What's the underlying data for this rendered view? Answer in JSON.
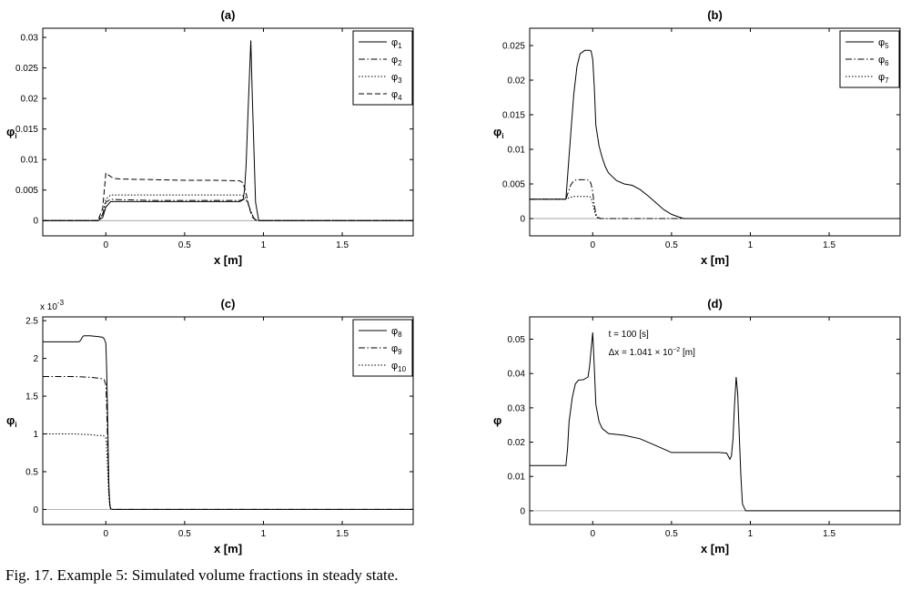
{
  "caption": "Fig. 17. Example 5: Simulated volume fractions in steady state.",
  "chart_data": [
    {
      "id": "a",
      "type": "line",
      "title": "(a)",
      "xlabel": "x [m]",
      "ylabel": "φi",
      "ylabel_base": "φ",
      "ylabel_sub": "i",
      "xlim": [
        -0.4,
        1.95
      ],
      "ylim": [
        -0.0025,
        0.0315
      ],
      "xticks": [
        0,
        0.5,
        1,
        1.5
      ],
      "xtick_labels": [
        "0",
        "0.5",
        "1",
        "1.5"
      ],
      "yticks": [
        0,
        0.005,
        0.01,
        0.015,
        0.02,
        0.025,
        0.03
      ],
      "ytick_labels": [
        "0",
        "0.005",
        "0.01",
        "0.015",
        "0.02",
        "0.025",
        "0.03"
      ],
      "exponent_label": "",
      "legend": "top-right",
      "series": [
        {
          "name": "φ1",
          "base": "φ",
          "sub": "1",
          "dash": "solid",
          "x": [
            -0.4,
            -0.05,
            -0.02,
            0.0,
            0.03,
            0.1,
            0.3,
            0.5,
            0.7,
            0.85,
            0.87,
            0.88,
            0.89,
            0.9,
            0.91,
            0.92,
            0.93,
            0.95,
            0.97,
            1.95
          ],
          "y": [
            0,
            0,
            0.0005,
            0.0022,
            0.0031,
            0.0031,
            0.0031,
            0.0031,
            0.0031,
            0.0031,
            0.0034,
            0.005,
            0.009,
            0.016,
            0.023,
            0.0295,
            0.02,
            0.003,
            0,
            0
          ]
        },
        {
          "name": "φ2",
          "base": "φ",
          "sub": "2",
          "dash": "dashdot",
          "x": [
            -0.4,
            -0.05,
            -0.02,
            0.0,
            0.03,
            0.1,
            0.3,
            0.5,
            0.7,
            0.85,
            0.88,
            0.9,
            0.92,
            0.94,
            0.96,
            1.95
          ],
          "y": [
            0,
            0,
            0.001,
            0.003,
            0.0035,
            0.0034,
            0.0033,
            0.0033,
            0.0033,
            0.0033,
            0.0035,
            0.003,
            0.0015,
            0.0003,
            0,
            0
          ]
        },
        {
          "name": "φ3",
          "base": "φ",
          "sub": "3",
          "dash": "dotted",
          "x": [
            -0.4,
            -0.05,
            -0.02,
            0.0,
            0.03,
            0.1,
            0.5,
            0.85,
            0.88,
            0.9,
            0.92,
            0.94,
            0.96,
            1.95
          ],
          "y": [
            0,
            0,
            0.001,
            0.0035,
            0.0042,
            0.0042,
            0.0042,
            0.0042,
            0.004,
            0.003,
            0.0015,
            0.0004,
            0,
            0
          ]
        },
        {
          "name": "φ4",
          "base": "φ",
          "sub": "4",
          "dash": "dashed",
          "x": [
            -0.4,
            -0.05,
            -0.02,
            0.0,
            0.02,
            0.05,
            0.1,
            0.3,
            0.5,
            0.7,
            0.85,
            0.87,
            0.89,
            0.91,
            0.93,
            0.95,
            0.97,
            1.95
          ],
          "y": [
            0,
            0,
            0.002,
            0.0078,
            0.0074,
            0.0069,
            0.0068,
            0.0067,
            0.0066,
            0.0066,
            0.0065,
            0.0062,
            0.0045,
            0.002,
            0.0006,
            0.0001,
            0,
            0
          ]
        }
      ]
    },
    {
      "id": "b",
      "type": "line",
      "title": "(b)",
      "xlabel": "x [m]",
      "ylabel": "φi",
      "ylabel_base": "φ",
      "ylabel_sub": "i",
      "xlim": [
        -0.4,
        1.95
      ],
      "ylim": [
        -0.0025,
        0.0275
      ],
      "xticks": [
        0,
        0.5,
        1,
        1.5
      ],
      "xtick_labels": [
        "0",
        "0.5",
        "1",
        "1.5"
      ],
      "yticks": [
        0,
        0.005,
        0.01,
        0.015,
        0.02,
        0.025
      ],
      "ytick_labels": [
        "0",
        "0.005",
        "0.01",
        "0.015",
        "0.02",
        "0.025"
      ],
      "exponent_label": "",
      "legend": "top-right",
      "series": [
        {
          "name": "φ5",
          "base": "φ",
          "sub": "5",
          "dash": "solid",
          "x": [
            -0.4,
            -0.17,
            -0.16,
            -0.14,
            -0.12,
            -0.1,
            -0.08,
            -0.05,
            -0.02,
            -0.01,
            0.0,
            0.01,
            0.02,
            0.04,
            0.06,
            0.08,
            0.1,
            0.15,
            0.2,
            0.25,
            0.3,
            0.35,
            0.4,
            0.45,
            0.5,
            0.55,
            0.58,
            0.6,
            1.95
          ],
          "y": [
            0.0028,
            0.0028,
            0.006,
            0.012,
            0.018,
            0.022,
            0.0238,
            0.0243,
            0.0243,
            0.0242,
            0.023,
            0.019,
            0.0135,
            0.0105,
            0.0088,
            0.0075,
            0.0066,
            0.0055,
            0.005,
            0.0048,
            0.0042,
            0.0033,
            0.0023,
            0.0013,
            0.0006,
            0.0002,
            0,
            0,
            0
          ]
        },
        {
          "name": "φ6",
          "base": "φ",
          "sub": "6",
          "dash": "dashdot",
          "x": [
            -0.4,
            -0.17,
            -0.16,
            -0.14,
            -0.12,
            -0.1,
            -0.07,
            -0.04,
            -0.02,
            -0.01,
            0.0,
            0.01,
            0.02,
            0.03,
            0.05,
            1.95
          ],
          "y": [
            0.0028,
            0.0028,
            0.0035,
            0.0048,
            0.0055,
            0.0056,
            0.0056,
            0.0056,
            0.0055,
            0.005,
            0.0038,
            0.002,
            0.0007,
            0.0002,
            0,
            0
          ]
        },
        {
          "name": "φ7",
          "base": "φ",
          "sub": "7",
          "dash": "dotted",
          "x": [
            -0.4,
            -0.17,
            -0.15,
            -0.12,
            -0.05,
            -0.02,
            -0.01,
            0.0,
            0.01,
            0.02,
            0.03,
            0.05
          ],
          "y": [
            0.0028,
            0.0028,
            0.003,
            0.0032,
            0.0032,
            0.0032,
            0.003,
            0.0022,
            0.0012,
            0.0004,
            0.0001,
            0
          ]
        }
      ]
    },
    {
      "id": "c",
      "type": "line",
      "title": "(c)",
      "xlabel": "x [m]",
      "ylabel": "φi",
      "ylabel_base": "φ",
      "ylabel_sub": "i",
      "xlim": [
        -0.4,
        1.95
      ],
      "ylim": [
        -0.2,
        2.55
      ],
      "xticks": [
        0,
        0.5,
        1,
        1.5
      ],
      "xtick_labels": [
        "0",
        "0.5",
        "1",
        "1.5"
      ],
      "yticks": [
        0,
        0.5,
        1,
        1.5,
        2,
        2.5
      ],
      "ytick_labels": [
        "0",
        "0.5",
        "1",
        "1.5",
        "2",
        "2.5"
      ],
      "exponent_label": "x 10",
      "exponent_sup": "-3",
      "legend": "top-right",
      "series": [
        {
          "name": "φ8",
          "base": "φ",
          "sub": "8",
          "dash": "solid",
          "x": [
            -0.4,
            -0.17,
            -0.16,
            -0.15,
            -0.14,
            -0.1,
            -0.05,
            -0.02,
            -0.01,
            0.0,
            0.005,
            0.01,
            0.015,
            0.02,
            0.025,
            0.03,
            0.04,
            1.95
          ],
          "y": [
            2.22,
            2.22,
            2.24,
            2.28,
            2.3,
            2.3,
            2.29,
            2.28,
            2.26,
            2.2,
            1.9,
            1.4,
            0.8,
            0.3,
            0.08,
            0.01,
            0,
            0
          ]
        },
        {
          "name": "φ9",
          "base": "φ",
          "sub": "9",
          "dash": "dashdot",
          "x": [
            -0.4,
            -0.2,
            -0.1,
            -0.05,
            -0.02,
            -0.01,
            0.0,
            0.005,
            0.01,
            0.015,
            0.02,
            0.025,
            0.03,
            0.04,
            1.95
          ],
          "y": [
            1.76,
            1.76,
            1.75,
            1.74,
            1.73,
            1.72,
            1.65,
            1.4,
            1.0,
            0.6,
            0.25,
            0.07,
            0.01,
            0,
            0
          ]
        },
        {
          "name": "φ10",
          "base": "φ",
          "sub": "10",
          "dash": "dotted",
          "x": [
            -0.4,
            -0.2,
            -0.1,
            -0.05,
            -0.02,
            -0.01,
            0.0,
            0.005,
            0.01,
            0.015,
            0.02,
            0.025,
            0.03,
            0.04
          ],
          "y": [
            1.0,
            1.0,
            0.99,
            0.98,
            0.98,
            0.97,
            0.95,
            0.85,
            0.6,
            0.35,
            0.15,
            0.04,
            0.01,
            0
          ]
        }
      ]
    },
    {
      "id": "d",
      "type": "line",
      "title": "(d)",
      "xlabel": "x [m]",
      "ylabel": "φ",
      "ylabel_base": "φ",
      "ylabel_sub": "",
      "xlim": [
        -0.4,
        1.95
      ],
      "ylim": [
        -0.004,
        0.0565
      ],
      "xticks": [
        0,
        0.5,
        1,
        1.5
      ],
      "xtick_labels": [
        "0",
        "0.5",
        "1",
        "1.5"
      ],
      "yticks": [
        0,
        0.01,
        0.02,
        0.03,
        0.04,
        0.05
      ],
      "ytick_labels": [
        "0",
        "0.01",
        "0.02",
        "0.03",
        "0.04",
        "0.05"
      ],
      "exponent_label": "",
      "legend": "none",
      "annotations": [
        {
          "text": "t = 100 [s]"
        },
        {
          "text": "Δx = 1.041 × 10",
          "sup": "−2",
          "tail": " [m]"
        }
      ],
      "series": [
        {
          "name": "",
          "dash": "solid",
          "x": [
            -0.4,
            -0.17,
            -0.16,
            -0.15,
            -0.13,
            -0.11,
            -0.09,
            -0.06,
            -0.03,
            -0.02,
            -0.01,
            0.0,
            0.01,
            0.02,
            0.04,
            0.06,
            0.1,
            0.2,
            0.3,
            0.4,
            0.5,
            0.6,
            0.7,
            0.8,
            0.85,
            0.87,
            0.88,
            0.89,
            0.9,
            0.91,
            0.92,
            0.93,
            0.94,
            0.95,
            0.97,
            1.0,
            1.95
          ],
          "y": [
            0.0132,
            0.0132,
            0.018,
            0.026,
            0.033,
            0.037,
            0.0381,
            0.0382,
            0.039,
            0.042,
            0.047,
            0.052,
            0.042,
            0.031,
            0.026,
            0.024,
            0.0225,
            0.022,
            0.021,
            0.019,
            0.017,
            0.017,
            0.017,
            0.017,
            0.0168,
            0.015,
            0.016,
            0.021,
            0.031,
            0.039,
            0.034,
            0.022,
            0.01,
            0.002,
            0,
            0,
            0
          ]
        }
      ]
    }
  ]
}
